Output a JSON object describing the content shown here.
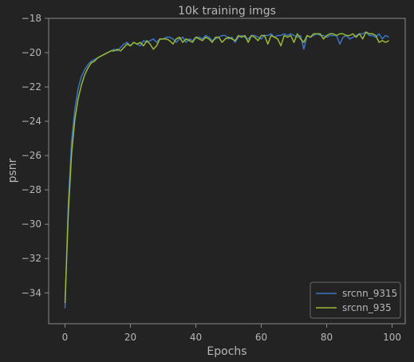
{
  "chart_data": {
    "type": "line",
    "title": "10k training imgs",
    "xlabel": "Epochs",
    "ylabel": "psnr",
    "xlim": [
      -5,
      104
    ],
    "ylim": [
      -35.8,
      -18
    ],
    "xticks": [
      0,
      20,
      40,
      60,
      80,
      100
    ],
    "yticks": [
      -34,
      -32,
      -30,
      -28,
      -26,
      -24,
      -22,
      -20,
      -18
    ],
    "grid": false,
    "legend_position": "bottom-right",
    "series": [
      {
        "name": "srcnn_9315",
        "color": "#3a75c4",
        "x": [
          0,
          1,
          2,
          3,
          4,
          5,
          6,
          7,
          8,
          9,
          10,
          11,
          12,
          13,
          14,
          15,
          16,
          17,
          18,
          19,
          20,
          21,
          22,
          23,
          24,
          25,
          26,
          27,
          28,
          29,
          30,
          31,
          32,
          33,
          34,
          35,
          36,
          37,
          38,
          39,
          40,
          41,
          42,
          43,
          44,
          45,
          46,
          47,
          48,
          49,
          50,
          51,
          52,
          53,
          54,
          55,
          56,
          57,
          58,
          59,
          60,
          61,
          62,
          63,
          64,
          65,
          66,
          67,
          68,
          69,
          70,
          71,
          72,
          73,
          74,
          75,
          76,
          77,
          78,
          79,
          80,
          81,
          82,
          83,
          84,
          85,
          86,
          87,
          88,
          89,
          90,
          91,
          92,
          93,
          94,
          95,
          96,
          97,
          98,
          99
        ],
        "values": [
          -34.9,
          -28.8,
          -25.2,
          -23.3,
          -22.1,
          -21.4,
          -21.0,
          -20.7,
          -20.5,
          -20.4,
          -20.3,
          -20.2,
          -20.1,
          -20.0,
          -19.9,
          -19.8,
          -19.9,
          -19.7,
          -19.5,
          -19.4,
          -19.6,
          -19.4,
          -19.5,
          -19.6,
          -19.3,
          -19.4,
          -19.3,
          -19.2,
          -19.4,
          -19.2,
          -19.2,
          -19.1,
          -19.1,
          -19.2,
          -19.4,
          -19.2,
          -19.1,
          -19.4,
          -19.2,
          -19.3,
          -19.1,
          -19.1,
          -19.2,
          -19.0,
          -19.1,
          -19.3,
          -19.2,
          -19.1,
          -19.0,
          -19.0,
          -19.2,
          -19.1,
          -19.4,
          -19.1,
          -19.0,
          -19.1,
          -19.2,
          -19.0,
          -19.0,
          -19.1,
          -19.2,
          -19.0,
          -19.0,
          -18.9,
          -19.1,
          -19.0,
          -19.0,
          -18.9,
          -19.0,
          -18.9,
          -19.0,
          -19.1,
          -19.0,
          -19.8,
          -19.0,
          -19.1,
          -19.0,
          -18.9,
          -19.0,
          -19.0,
          -19.1,
          -19.0,
          -19.0,
          -19.0,
          -19.5,
          -19.1,
          -19.0,
          -19.2,
          -19.1,
          -19.0,
          -18.9,
          -18.9,
          -18.8,
          -19.0,
          -19.0,
          -19.1,
          -18.9,
          -19.2,
          -19.0,
          -19.1
        ]
      },
      {
        "name": "srcnn_935",
        "color": "#9ab834",
        "x": [
          0,
          1,
          2,
          3,
          4,
          5,
          6,
          7,
          8,
          9,
          10,
          11,
          12,
          13,
          14,
          15,
          16,
          17,
          18,
          19,
          20,
          21,
          22,
          23,
          24,
          25,
          26,
          27,
          28,
          29,
          30,
          31,
          32,
          33,
          34,
          35,
          36,
          37,
          38,
          39,
          40,
          41,
          42,
          43,
          44,
          45,
          46,
          47,
          48,
          49,
          50,
          51,
          52,
          53,
          54,
          55,
          56,
          57,
          58,
          59,
          60,
          61,
          62,
          63,
          64,
          65,
          66,
          67,
          68,
          69,
          70,
          71,
          72,
          73,
          74,
          75,
          76,
          77,
          78,
          79,
          80,
          81,
          82,
          83,
          84,
          85,
          86,
          87,
          88,
          89,
          90,
          91,
          92,
          93,
          94,
          95,
          96,
          97,
          98,
          99
        ],
        "values": [
          -34.6,
          -29.4,
          -25.9,
          -23.9,
          -22.7,
          -21.9,
          -21.3,
          -20.9,
          -20.6,
          -20.5,
          -20.3,
          -20.2,
          -20.1,
          -20.0,
          -19.9,
          -19.9,
          -19.8,
          -19.9,
          -19.7,
          -19.5,
          -19.6,
          -19.4,
          -19.5,
          -19.4,
          -19.6,
          -19.3,
          -19.5,
          -19.8,
          -19.6,
          -19.2,
          -19.2,
          -19.2,
          -19.3,
          -19.5,
          -19.2,
          -19.1,
          -19.4,
          -19.2,
          -19.3,
          -19.4,
          -19.1,
          -19.2,
          -19.3,
          -19.1,
          -19.2,
          -19.4,
          -19.1,
          -19.1,
          -19.4,
          -19.2,
          -19.1,
          -19.2,
          -19.3,
          -19.0,
          -19.1,
          -19.0,
          -19.4,
          -19.0,
          -19.1,
          -19.3,
          -19.0,
          -19.0,
          -19.5,
          -19.0,
          -19.1,
          -19.2,
          -19.6,
          -19.0,
          -19.1,
          -19.0,
          -19.4,
          -18.9,
          -19.2,
          -19.4,
          -19.0,
          -19.1,
          -18.9,
          -18.9,
          -18.9,
          -19.2,
          -19.0,
          -18.9,
          -18.9,
          -19.0,
          -18.9,
          -18.9,
          -19.0,
          -19.0,
          -18.9,
          -19.1,
          -18.9,
          -19.2,
          -18.8,
          -18.9,
          -18.9,
          -19.0,
          -19.4,
          -19.3,
          -19.4,
          -19.3
        ]
      }
    ]
  }
}
